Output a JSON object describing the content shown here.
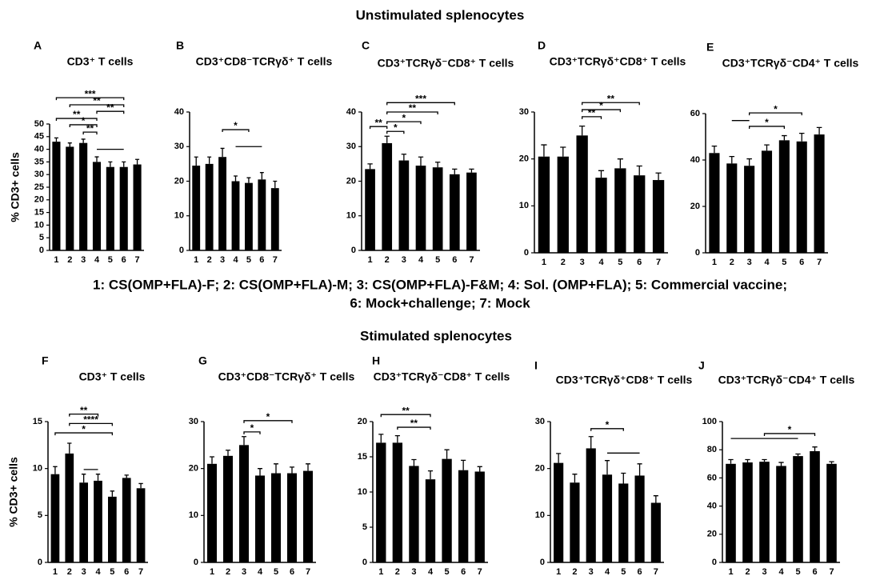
{
  "headings": [
    "Unstimulated splenocytes",
    "Stimulated splenocytes"
  ],
  "legend_lines": [
    "1: CS(OMP+FLA)-F; 2: CS(OMP+FLA)-M; 3: CS(OMP+FLA)-F&M; 4: Sol. (OMP+FLA); 5: Commercial vaccine;",
    "6: Mock+challenge; 7: Mock"
  ],
  "chart_data": [
    {
      "type": "bar",
      "panel": "A",
      "title": "CD3⁺ T cells",
      "ylabel": "% CD3+ cells",
      "color": "#000000",
      "categories": [
        "1",
        "2",
        "3",
        "4",
        "5",
        "6",
        "7"
      ],
      "values": [
        43,
        41,
        42.5,
        35,
        33,
        33,
        34
      ],
      "errors": [
        1.5,
        1.5,
        1.5,
        2,
        2,
        2,
        2
      ],
      "ylim": [
        0,
        50
      ],
      "yticks": [
        0,
        5,
        10,
        15,
        20,
        25,
        30,
        35,
        40,
        45,
        50
      ],
      "annotations": [
        {
          "label": "***",
          "from": "1",
          "to": "6",
          "y": 60.4
        },
        {
          "label": "**",
          "from": "2",
          "to": "6",
          "y": 57.6
        },
        {
          "label": "**",
          "from": "4",
          "to": "6",
          "y": 55
        },
        {
          "label": "**",
          "from": "1",
          "to": "4",
          "y": 52.2
        },
        {
          "label": "*",
          "from": "2",
          "to": "4",
          "y": 49.7
        },
        {
          "label": "**",
          "from": "3",
          "to": "4",
          "y": 46.8
        },
        {
          "from": "4",
          "to": "6",
          "y": 40
        }
      ]
    },
    {
      "type": "bar",
      "panel": "B",
      "title": "CD3⁺CD8⁻TCRγδ⁺ T cells",
      "color": "#000000",
      "categories": [
        "1",
        "2",
        "3",
        "4",
        "5",
        "6",
        "7"
      ],
      "values": [
        24.5,
        25,
        27,
        20,
        19.5,
        20.5,
        18
      ],
      "errors": [
        2.5,
        2,
        2.5,
        1.5,
        1.5,
        2,
        2
      ],
      "ylim": [
        0,
        40
      ],
      "yticks": [
        0,
        10,
        20,
        30,
        40
      ],
      "annotations": [
        {
          "label": "*",
          "from": "3",
          "to": "5",
          "y": 34.9
        },
        {
          "from": "4",
          "to": "6",
          "y": 30
        }
      ]
    },
    {
      "type": "bar",
      "panel": "C",
      "title": "CD3⁺TCRγδ⁻CD8⁺ T cells",
      "color": "#000000",
      "categories": [
        "1",
        "2",
        "3",
        "4",
        "5",
        "6",
        "7"
      ],
      "values": [
        23.5,
        31,
        26,
        24.5,
        24,
        22,
        22.5
      ],
      "errors": [
        1.5,
        2,
        1.8,
        2.5,
        1.5,
        1.5,
        1
      ],
      "ylim": [
        0,
        40
      ],
      "yticks": [
        0,
        10,
        20,
        30,
        40
      ],
      "annotations": [
        {
          "label": "***",
          "from": "2",
          "to": "6",
          "y": 42.7
        },
        {
          "label": "**",
          "from": "2",
          "to": "5",
          "y": 40
        },
        {
          "label": "*",
          "from": "2",
          "to": "4",
          "y": 37.2
        },
        {
          "label": "**",
          "from": "1",
          "to": "2",
          "y": 35.8
        },
        {
          "label": "*",
          "from": "2",
          "to": "3",
          "y": 34.4
        }
      ]
    },
    {
      "type": "bar",
      "panel": "D",
      "title": "CD3⁺TCRγδ⁺CD8⁺ T cells",
      "color": "#000000",
      "categories": [
        "1",
        "2",
        "3",
        "4",
        "5",
        "6",
        "7"
      ],
      "values": [
        20.5,
        20.5,
        25,
        16,
        18,
        16.5,
        15.5
      ],
      "errors": [
        2.5,
        2,
        2,
        1.5,
        2,
        2,
        1.5
      ],
      "ylim": [
        0,
        30
      ],
      "yticks": [
        0,
        10,
        20,
        30
      ],
      "annotations": [
        {
          "label": "**",
          "from": "3",
          "to": "6",
          "y": 32
        },
        {
          "label": "*",
          "from": "3",
          "to": "5",
          "y": 30.5
        },
        {
          "label": "**",
          "from": "3",
          "to": "4",
          "y": 29
        }
      ]
    },
    {
      "type": "bar",
      "panel": "E",
      "title": "CD3⁺TCRγδ⁻CD4⁺ T cells",
      "color": "#000000",
      "categories": [
        "1",
        "2",
        "3",
        "4",
        "5",
        "6",
        "7"
      ],
      "values": [
        43,
        38.5,
        37.5,
        44,
        48.5,
        48,
        51
      ],
      "errors": [
        3,
        3,
        3,
        2.5,
        2,
        3.5,
        3
      ],
      "ylim": [
        0,
        60
      ],
      "yticks": [
        0,
        20,
        40,
        60
      ],
      "annotations": [
        {
          "label": "*",
          "from": "3",
          "to": "6",
          "y": 60.3
        },
        {
          "from": "2",
          "to": "3",
          "y": 57
        },
        {
          "label": "*",
          "from": "3",
          "to": "5",
          "y": 54.5
        }
      ]
    },
    {
      "type": "bar",
      "panel": "F",
      "title": "CD3⁺ T cells",
      "ylabel": "% CD3+ cells",
      "color": "#000000",
      "categories": [
        "1",
        "2",
        "3",
        "4",
        "5",
        "6",
        "7"
      ],
      "values": [
        9.4,
        11.6,
        8.5,
        8.7,
        7,
        9,
        7.9
      ],
      "errors": [
        0.8,
        1.1,
        0.9,
        0.7,
        0.6,
        0.3,
        0.5
      ],
      "ylim": [
        0,
        15
      ],
      "yticks": [
        0,
        5,
        10,
        15
      ],
      "annotations": [
        {
          "label": "**",
          "from": "2",
          "to": "4",
          "y": 15.8
        },
        {
          "label": "****",
          "from": "2",
          "to": "5",
          "y": 14.8
        },
        {
          "label": "*",
          "from": "1",
          "to": "5",
          "y": 13.8
        },
        {
          "from": "3",
          "to": "4",
          "y": 9.9
        }
      ]
    },
    {
      "type": "bar",
      "panel": "G",
      "title": "CD3⁺CD8⁻TCRγδ⁺ T cells",
      "color": "#000000",
      "categories": [
        "1",
        "2",
        "3",
        "4",
        "5",
        "6",
        "7"
      ],
      "values": [
        21,
        22.7,
        25,
        18.5,
        19,
        19,
        19.5
      ],
      "errors": [
        1.5,
        1.2,
        1.8,
        1.5,
        2,
        1.3,
        1.5
      ],
      "ylim": [
        0,
        30
      ],
      "yticks": [
        0,
        10,
        20,
        30
      ],
      "annotations": [
        {
          "label": "*",
          "from": "3",
          "to": "6",
          "y": 30.2
        },
        {
          "label": "*",
          "from": "3",
          "to": "4",
          "y": 27.8
        }
      ]
    },
    {
      "type": "bar",
      "panel": "H",
      "title": "CD3⁺TCRγδ⁻CD8⁺ T cells",
      "color": "#000000",
      "categories": [
        "1",
        "2",
        "3",
        "4",
        "5",
        "6",
        "7"
      ],
      "values": [
        17,
        17,
        13.7,
        11.8,
        14.7,
        13.1,
        12.9
      ],
      "errors": [
        1.2,
        1,
        0.9,
        1.2,
        1.3,
        1.4,
        0.7
      ],
      "ylim": [
        0,
        20
      ],
      "yticks": [
        0,
        5,
        10,
        15,
        20
      ],
      "annotations": [
        {
          "label": "**",
          "from": "1",
          "to": "4",
          "y": 21
        },
        {
          "label": "**",
          "from": "2",
          "to": "4",
          "y": 19.2
        }
      ]
    },
    {
      "type": "bar",
      "panel": "I",
      "title": "CD3⁺TCRγδ⁺CD8⁺ T cells",
      "color": "#000000",
      "categories": [
        "1",
        "2",
        "3",
        "4",
        "5",
        "6",
        "7"
      ],
      "values": [
        21.2,
        17,
        24.3,
        18.7,
        16.8,
        18.5,
        12.7
      ],
      "errors": [
        2,
        1.8,
        2.5,
        3,
        2.2,
        2.5,
        1.5
      ],
      "ylim": [
        0,
        30
      ],
      "yticks": [
        0,
        10,
        20,
        30
      ],
      "annotations": [
        {
          "label": "*",
          "from": "3",
          "to": "5",
          "y": 28.5
        },
        {
          "from": "4",
          "to": "6",
          "y": 23.3
        }
      ]
    },
    {
      "type": "bar",
      "panel": "J",
      "title": "CD3⁺TCRγδ⁻CD4⁺ T cells",
      "color": "#000000",
      "categories": [
        "1",
        "2",
        "3",
        "4",
        "5",
        "6",
        "7"
      ],
      "values": [
        70,
        71,
        71.5,
        68.5,
        75.5,
        79,
        70
      ],
      "errors": [
        3,
        2,
        1.5,
        2.5,
        1.5,
        3,
        1.5
      ],
      "ylim": [
        0,
        100
      ],
      "yticks": [
        0,
        20,
        40,
        60,
        80,
        100
      ],
      "annotations": [
        {
          "label": "*",
          "from": "3",
          "to": "6",
          "y": 91.5
        },
        {
          "from": "1",
          "to": "5",
          "y": 88
        }
      ]
    }
  ]
}
